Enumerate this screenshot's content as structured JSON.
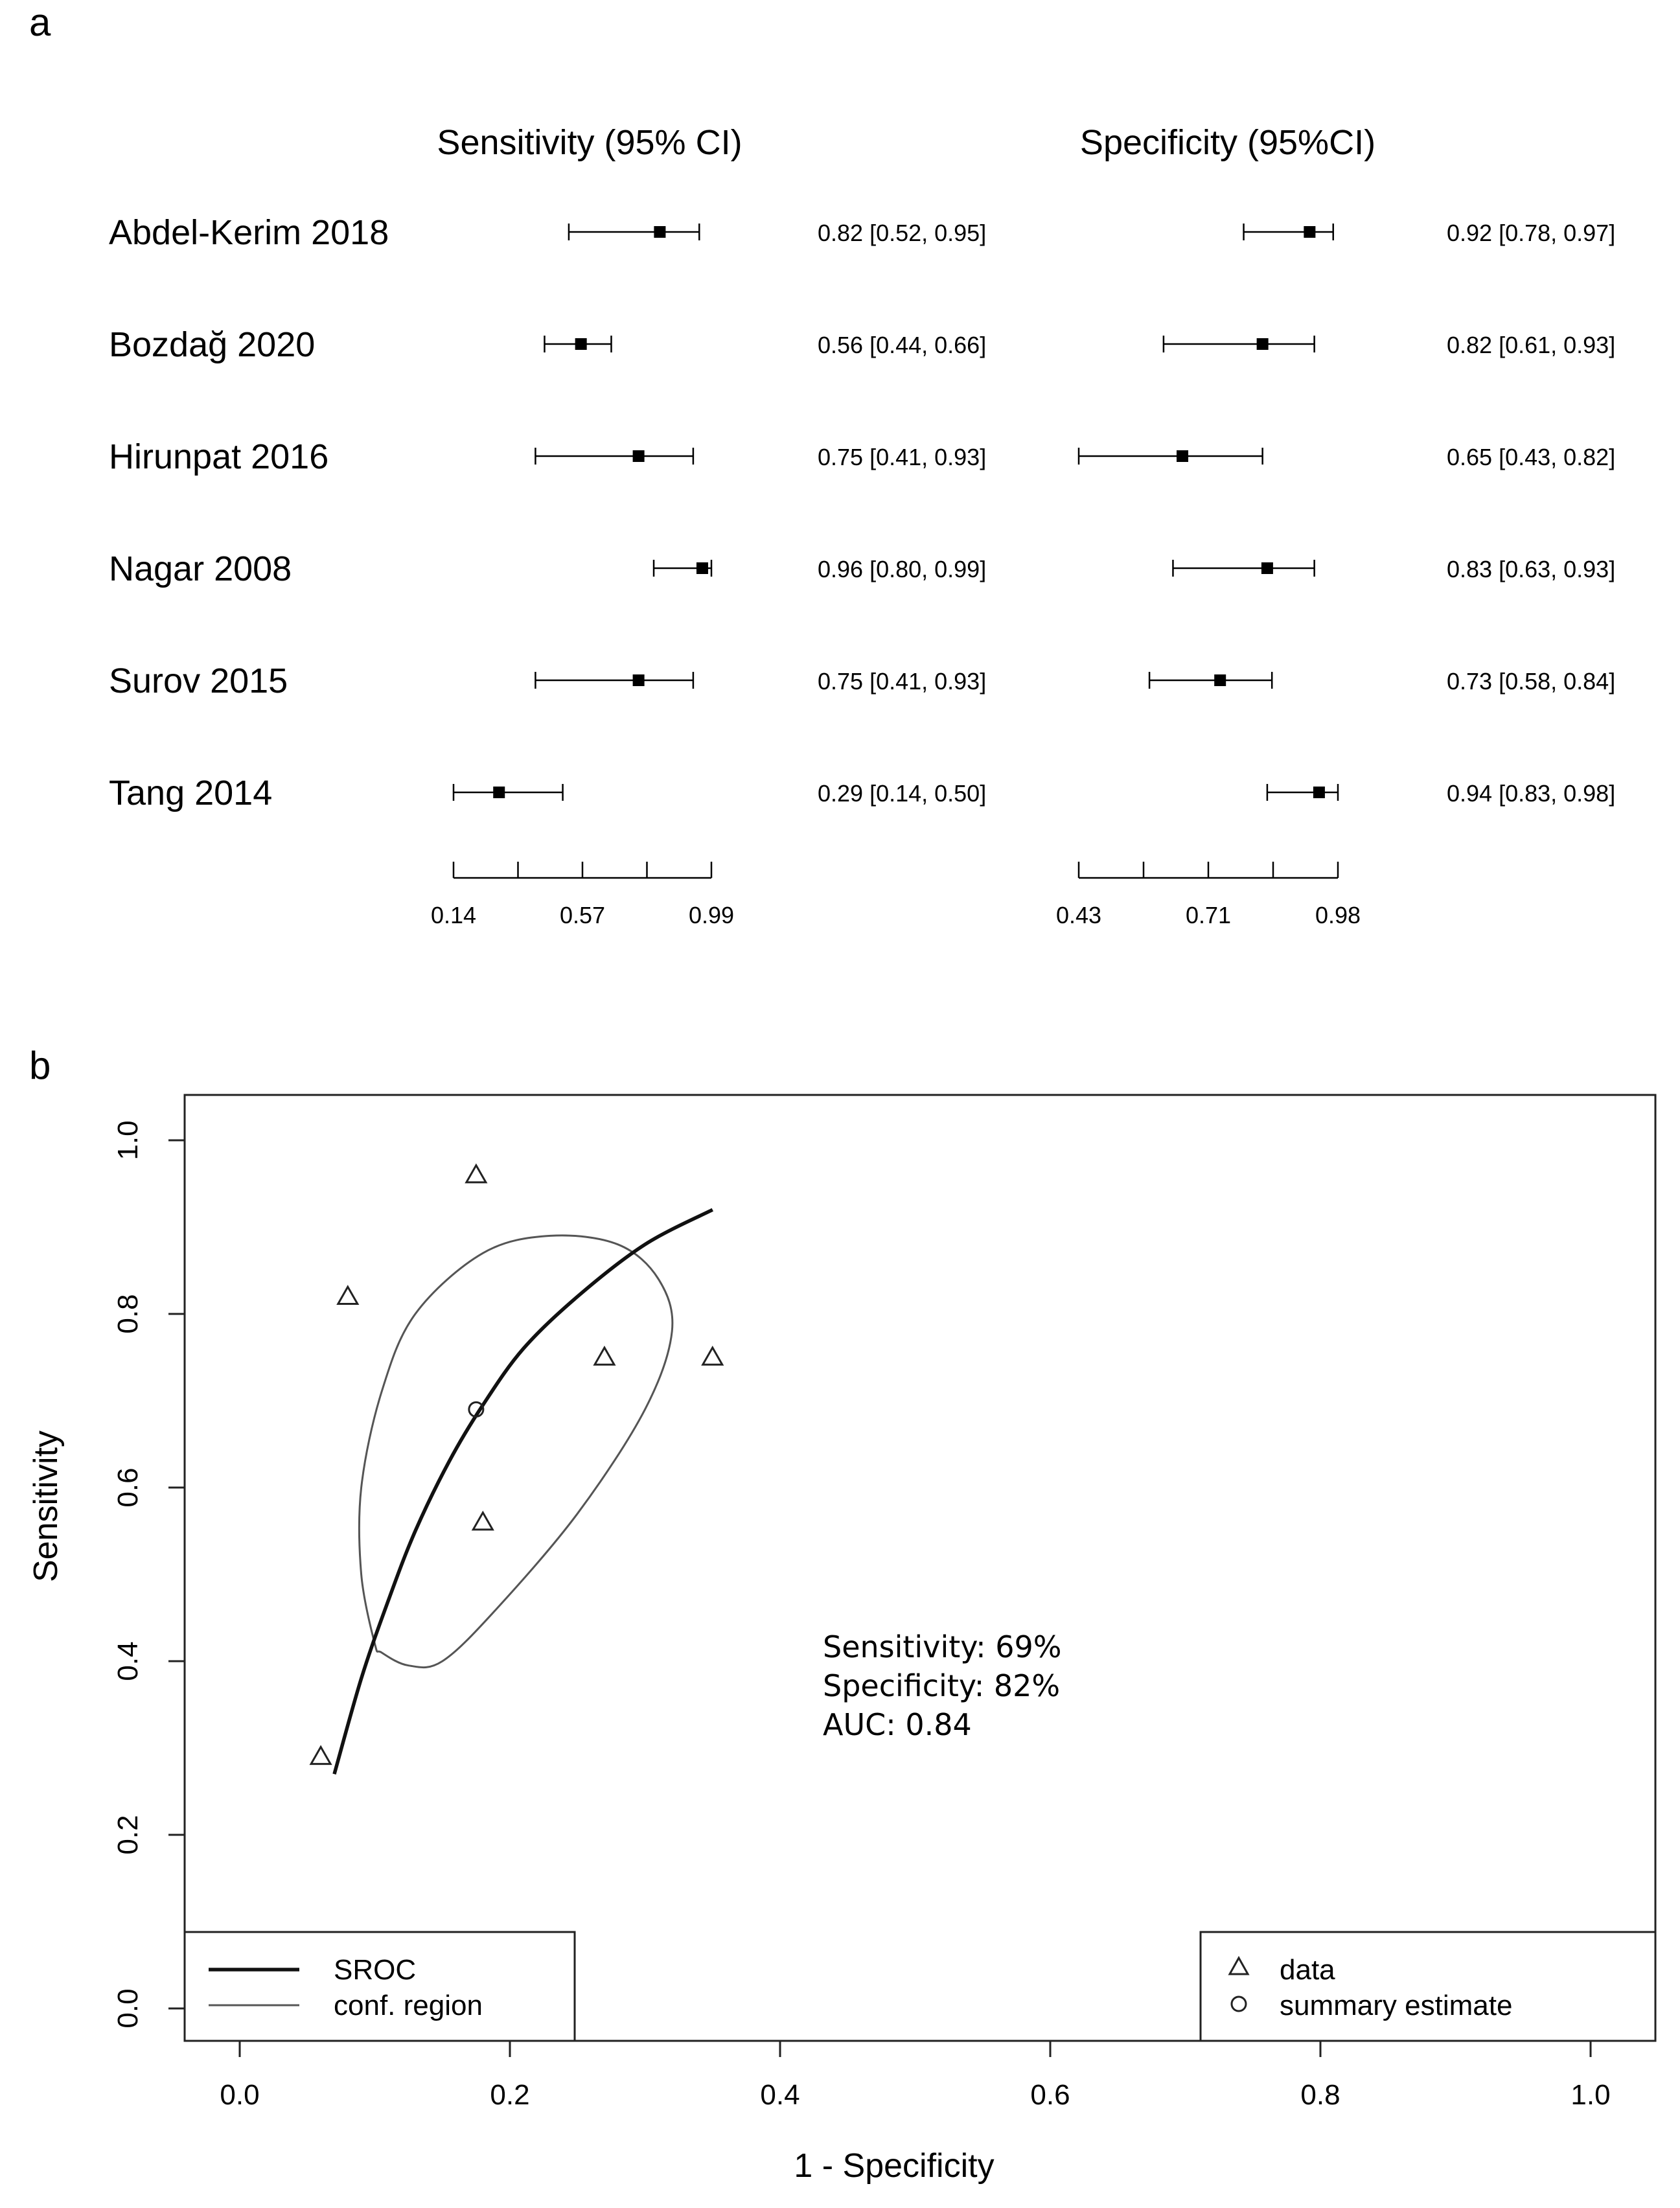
{
  "chart_data": [
    {
      "type": "forest",
      "panel_label": "a",
      "studies": [
        "Abdel-Kerim 2018",
        "Bozdağ 2020",
        "Hirunpat 2016",
        "Nagar 2008",
        "Surov 2015",
        "Tang 2014"
      ],
      "sensitivity": {
        "header": "Sensitivity (95% CI)",
        "estimates": [
          0.82,
          0.56,
          0.75,
          0.96,
          0.75,
          0.29
        ],
        "lower": [
          0.52,
          0.44,
          0.41,
          0.8,
          0.41,
          0.14
        ],
        "upper": [
          0.95,
          0.66,
          0.93,
          0.99,
          0.93,
          0.5
        ],
        "labels": [
          "0.82 [0.52, 0.95]",
          "0.56 [0.44, 0.66]",
          "0.75 [0.41, 0.93]",
          "0.96 [0.80, 0.99]",
          "0.75 [0.41, 0.93]",
          "0.29 [0.14, 0.50]"
        ],
        "axis_ticks": [
          "0.14",
          "0.57",
          "0.99"
        ],
        "axis_range": [
          0.14,
          0.99
        ]
      },
      "specificity": {
        "header": "Specificity (95%CI)",
        "estimates": [
          0.92,
          0.82,
          0.65,
          0.83,
          0.73,
          0.94
        ],
        "lower": [
          0.78,
          0.61,
          0.43,
          0.63,
          0.58,
          0.83
        ],
        "upper": [
          0.97,
          0.93,
          0.82,
          0.93,
          0.84,
          0.98
        ],
        "labels": [
          "0.92 [0.78, 0.97]",
          "0.82 [0.61, 0.93]",
          "0.65 [0.43, 0.82]",
          "0.83 [0.63, 0.93]",
          "0.73 [0.58, 0.84]",
          "0.94 [0.83, 0.98]"
        ],
        "axis_ticks": [
          "0.43",
          "0.71",
          "0.98"
        ],
        "axis_range": [
          0.43,
          0.98
        ]
      }
    },
    {
      "type": "scatter",
      "panel_label": "b",
      "xlabel": "1 - Specificity",
      "ylabel": "Sensitivity",
      "xlim": [
        0,
        1
      ],
      "ylim": [
        0,
        1
      ],
      "x_ticks": [
        "0.0",
        "0.2",
        "0.4",
        "0.6",
        "0.8",
        "1.0"
      ],
      "y_ticks": [
        "0.0",
        "0.2",
        "0.4",
        "0.6",
        "0.8",
        "1.0"
      ],
      "data_points": [
        {
          "x": 0.08,
          "y": 0.82
        },
        {
          "x": 0.175,
          "y": 0.96
        },
        {
          "x": 0.27,
          "y": 0.75
        },
        {
          "x": 0.35,
          "y": 0.75
        },
        {
          "x": 0.18,
          "y": 0.56
        },
        {
          "x": 0.06,
          "y": 0.29
        }
      ],
      "summary_estimate": {
        "x": 0.175,
        "y": 0.69
      },
      "sroc_curve": [
        {
          "x": 0.07,
          "y": 0.27
        },
        {
          "x": 0.09,
          "y": 0.38
        },
        {
          "x": 0.11,
          "y": 0.47
        },
        {
          "x": 0.13,
          "y": 0.55
        },
        {
          "x": 0.155,
          "y": 0.63
        },
        {
          "x": 0.18,
          "y": 0.695
        },
        {
          "x": 0.21,
          "y": 0.76
        },
        {
          "x": 0.25,
          "y": 0.82
        },
        {
          "x": 0.3,
          "y": 0.88
        },
        {
          "x": 0.35,
          "y": 0.92
        }
      ],
      "conf_region": [
        {
          "x": 0.1,
          "y": 0.42
        },
        {
          "x": 0.09,
          "y": 0.5
        },
        {
          "x": 0.09,
          "y": 0.6
        },
        {
          "x": 0.105,
          "y": 0.71
        },
        {
          "x": 0.13,
          "y": 0.8
        },
        {
          "x": 0.18,
          "y": 0.87
        },
        {
          "x": 0.23,
          "y": 0.89
        },
        {
          "x": 0.28,
          "y": 0.88
        },
        {
          "x": 0.31,
          "y": 0.84
        },
        {
          "x": 0.32,
          "y": 0.78
        },
        {
          "x": 0.3,
          "y": 0.69
        },
        {
          "x": 0.25,
          "y": 0.57
        },
        {
          "x": 0.19,
          "y": 0.46
        },
        {
          "x": 0.15,
          "y": 0.4
        },
        {
          "x": 0.125,
          "y": 0.395
        },
        {
          "x": 0.105,
          "y": 0.41
        }
      ],
      "annotation": [
        "Sensitivity: 69%",
        "Specificity: 82%",
        "AUC: 0.84"
      ],
      "legend_left": [
        "SROC",
        "conf. region"
      ],
      "legend_right": [
        "data",
        "summary estimate"
      ]
    }
  ],
  "colors": {
    "ink": "#000000",
    "curve": "#111111",
    "region": "#555555",
    "frame": "#222222"
  }
}
